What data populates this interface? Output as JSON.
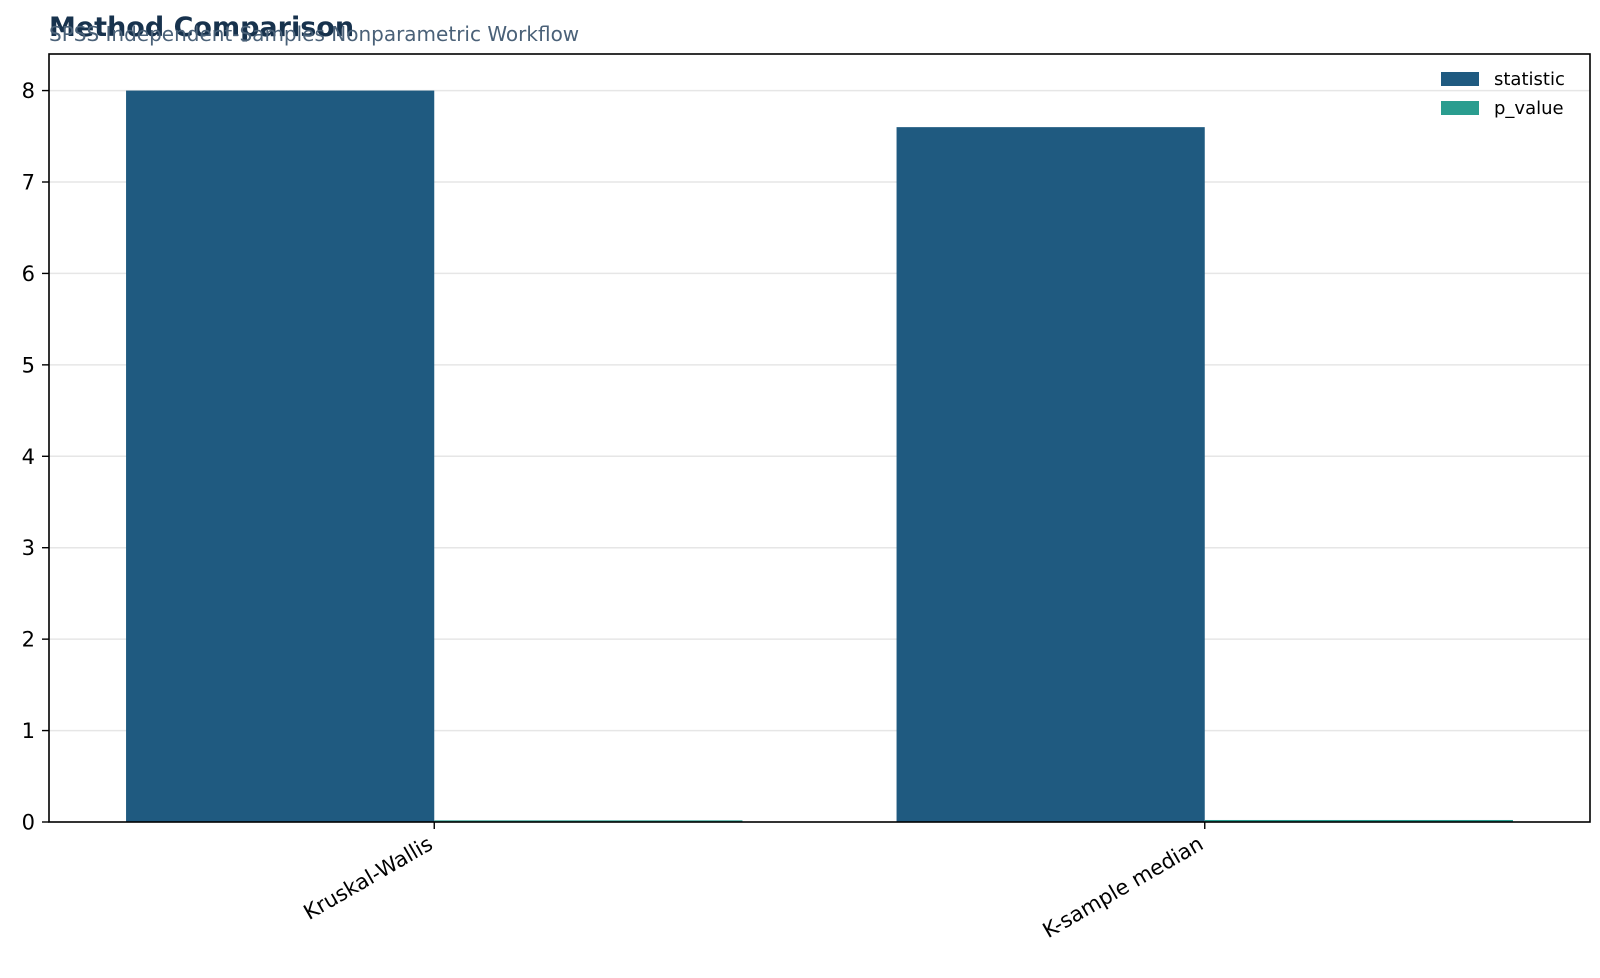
{
  "chart_data": {
    "type": "bar",
    "title": "Method Comparison",
    "subtitle": "SPSS Independent-Samples Nonparametric Workflow",
    "xlabel": "",
    "ylabel": "",
    "categories": [
      "Kruskal-Wallis",
      "K-sample median"
    ],
    "series": [
      {
        "name": "statistic",
        "values": [
          8.0,
          7.6
        ],
        "color": "#1f5a80"
      },
      {
        "name": "p_value",
        "values": [
          0.018,
          0.022
        ],
        "color": "#2a9d8f"
      }
    ],
    "ylim": [
      0,
      8.4
    ],
    "yticks": [
      "0",
      "1",
      "2",
      "3",
      "4",
      "5",
      "6",
      "7",
      "8"
    ],
    "grid": "horizontal",
    "legend_position": "top-right"
  },
  "colors": {
    "title": "#17324d",
    "subtitle": "#4a6178",
    "grid": "#e6e6e6",
    "axis": "#000000"
  }
}
